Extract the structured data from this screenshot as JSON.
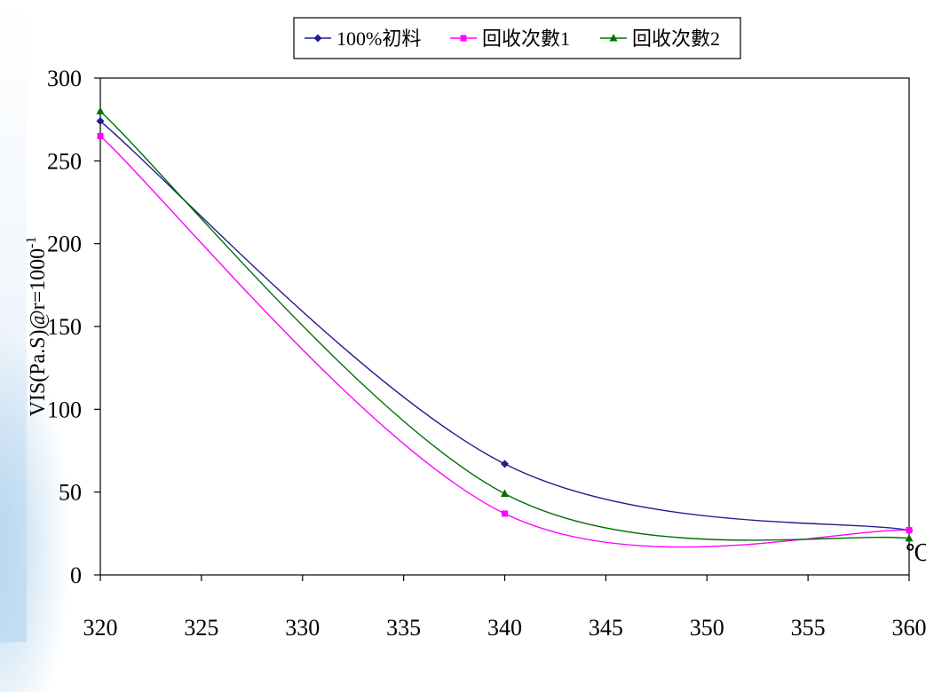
{
  "chart_data": {
    "type": "line",
    "ylabel": "VIS(Pa.S)@r=1000",
    "ylabel_superscript": "-1",
    "xlabel_unit": "℃",
    "xlim": [
      320,
      360
    ],
    "ylim": [
      0,
      300
    ],
    "x_ticks": [
      320,
      325,
      330,
      335,
      340,
      345,
      350,
      355,
      360
    ],
    "y_ticks": [
      0,
      50,
      100,
      150,
      200,
      250,
      300
    ],
    "legend_position": "top-center",
    "grid": false,
    "series": [
      {
        "name": "100%初料",
        "color": "#1f1f8f",
        "marker": "diamond",
        "x": [
          320,
          340,
          360
        ],
        "y": [
          274,
          67,
          27
        ]
      },
      {
        "name": "回收次數1",
        "color": "#ff00ff",
        "marker": "square",
        "x": [
          320,
          340,
          360
        ],
        "y": [
          265,
          37,
          27
        ]
      },
      {
        "name": "回收次數2",
        "color": "#007000",
        "marker": "triangle",
        "x": [
          320,
          340,
          360
        ],
        "y": [
          280,
          49,
          22
        ]
      }
    ]
  }
}
